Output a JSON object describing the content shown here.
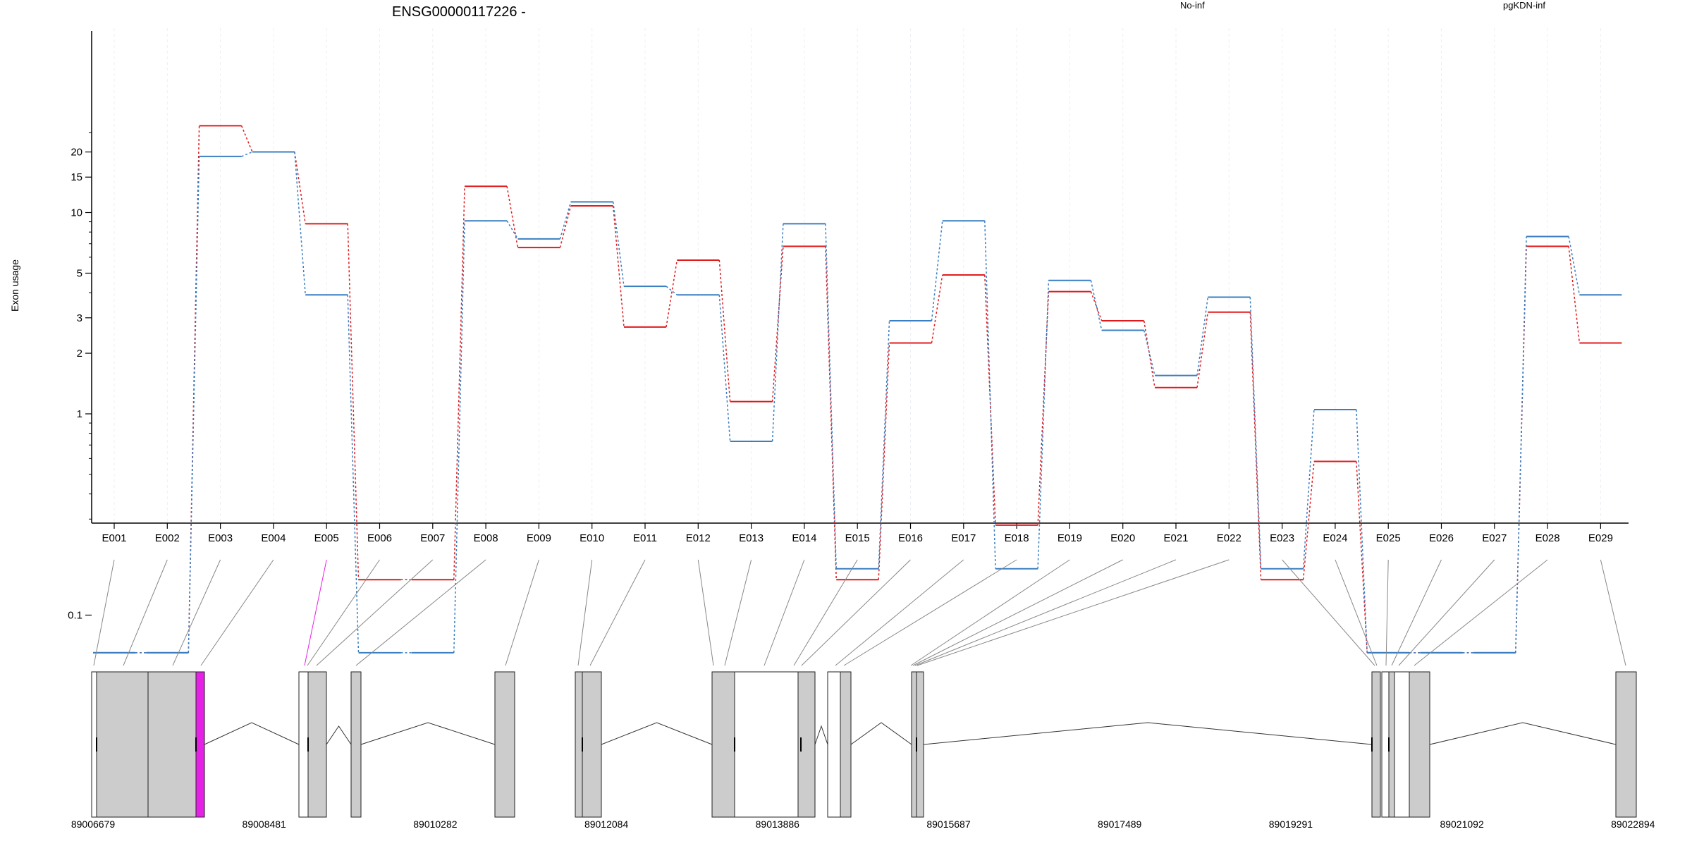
{
  "chart_data": {
    "type": "line",
    "title": "ENSG00000117226 -",
    "ylabel": "Exon usage",
    "y_scale": "log",
    "yticks": [
      {
        "v": 0.1,
        "label": "0.1"
      },
      {
        "v": 1,
        "label": "1"
      },
      {
        "v": 2,
        "label": "2"
      },
      {
        "v": 3,
        "label": "3"
      },
      {
        "v": 5,
        "label": "5"
      },
      {
        "v": 10,
        "label": "10"
      },
      {
        "v": 15,
        "label": "15"
      },
      {
        "v": 20,
        "label": "20"
      }
    ],
    "categories": [
      "E001",
      "E002",
      "E003",
      "E004",
      "E005",
      "E006",
      "E007",
      "E008",
      "E009",
      "E010",
      "E011",
      "E012",
      "E013",
      "E014",
      "E015",
      "E016",
      "E017",
      "E018",
      "E019",
      "E020",
      "E021",
      "E022",
      "E023",
      "E024",
      "E025",
      "E026",
      "E027",
      "E028",
      "E029"
    ],
    "series": [
      {
        "name": "No-inf",
        "color": "#e31a1c",
        "values": [
          0.065,
          0.065,
          27,
          20,
          8.8,
          0.15,
          0.15,
          13.5,
          6.7,
          10.8,
          2.7,
          5.8,
          1.15,
          6.8,
          0.15,
          2.25,
          4.9,
          0.28,
          4.05,
          2.9,
          1.35,
          3.2,
          0.15,
          0.58,
          0.065,
          0.065,
          0.065,
          6.8,
          2.25
        ]
      },
      {
        "name": "pgKDN-inf",
        "color": "#3a7fc1",
        "values": [
          0.065,
          0.065,
          19,
          20,
          3.9,
          0.065,
          0.065,
          9.1,
          7.4,
          11.3,
          4.3,
          3.9,
          0.73,
          8.8,
          0.17,
          2.9,
          9.1,
          0.17,
          4.6,
          2.6,
          1.55,
          3.8,
          0.17,
          1.05,
          0.065,
          0.065,
          0.065,
          7.6,
          3.9
        ]
      }
    ],
    "gene_model": {
      "start_coordinate_label": "89006679",
      "coordinate_labels": [
        "89006679",
        "89008481",
        "89010282",
        "89012084",
        "89013886",
        "89015687",
        "89017489",
        "89019291",
        "89021092",
        "89022894"
      ],
      "highlighted_exon": "E005",
      "highlight_color": "#e621e6"
    }
  }
}
